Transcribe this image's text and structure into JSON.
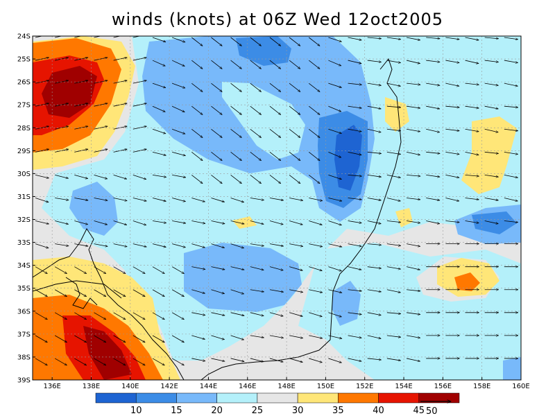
{
  "title": "winds (knots) at 06Z Wed 12oct2005",
  "map": {
    "lat_labels": [
      "24S",
      "25S",
      "26S",
      "27S",
      "28S",
      "29S",
      "30S",
      "31S",
      "32S",
      "33S",
      "34S",
      "35S",
      "36S",
      "37S",
      "38S",
      "39S"
    ],
    "lon_labels": [
      "136E",
      "138E",
      "140E",
      "142E",
      "144E",
      "146E",
      "148E",
      "150E",
      "152E",
      "154E",
      "156E",
      "158E",
      "160E"
    ],
    "extent": {
      "lon": [
        135,
        160
      ],
      "lat": [
        -39,
        -24
      ]
    }
  },
  "colorbar": {
    "levels": [
      "10",
      "15",
      "20",
      "25",
      "30",
      "35",
      "40",
      "45"
    ],
    "colors": [
      "#1e64d2",
      "#3c8ce6",
      "#78b9fa",
      "#b4f0fa",
      "#e6e6e6",
      "#ffe678",
      "#ff7800",
      "#e61400",
      "#a00000"
    ]
  },
  "vector_reference": {
    "label": "50"
  },
  "features": {
    "wind_maxima": [
      {
        "region": "northwest",
        "lon": 138,
        "lat": -26.5,
        "speed_kt": 45
      },
      {
        "region": "southwest",
        "lon": 139.5,
        "lat": -37.8,
        "speed_kt": 45
      },
      {
        "region": "east",
        "lon": 157.5,
        "lat": -34.8,
        "speed_kt": 40
      }
    ],
    "wind_minima": [
      {
        "region": "north-central",
        "lon": 145.5,
        "lat": -25,
        "speed_kt": 10
      },
      {
        "region": "east coast",
        "lon": 151,
        "lat": -29.5,
        "speed_kt": 10
      },
      {
        "region": "far east",
        "lon": 158.5,
        "lat": -32,
        "speed_kt": 10
      }
    ]
  }
}
